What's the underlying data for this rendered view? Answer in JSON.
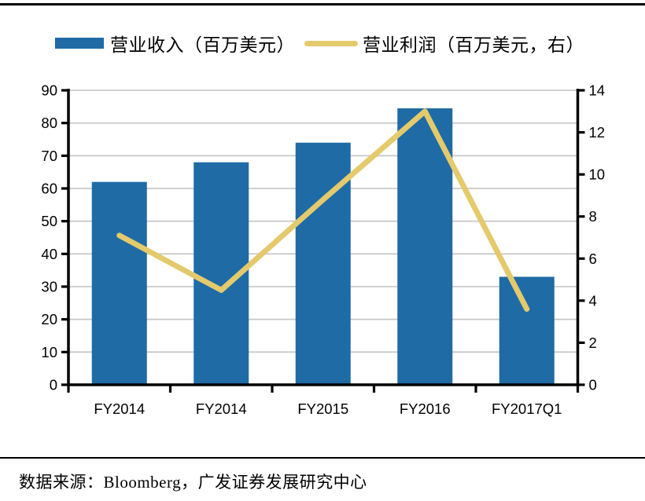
{
  "page": {
    "background": "#FFFFFF"
  },
  "chart_data": {
    "type": "bar+line",
    "title": "",
    "categories": [
      "FY2014",
      "FY2014",
      "FY2015",
      "FY2016",
      "FY2017Q1"
    ],
    "series": [
      {
        "name": "营业收入（百万美元）",
        "type": "bar",
        "axis": "left",
        "color": "#1F6BA5",
        "values": [
          62,
          68,
          74,
          84.5,
          33
        ]
      },
      {
        "name": "营业利润（百万美元，右）",
        "type": "line",
        "axis": "right",
        "color": "#E4CA6C",
        "values": [
          7.1,
          4.5,
          8.8,
          13.0,
          3.6
        ]
      }
    ],
    "left_axis": {
      "min": 0,
      "max": 90,
      "step": 10,
      "tick_labels": [
        "0",
        "10",
        "20",
        "30",
        "40",
        "50",
        "60",
        "70",
        "80",
        "90"
      ]
    },
    "right_axis": {
      "min": 0,
      "max": 14,
      "step": 2,
      "tick_labels": [
        "0",
        "2",
        "4",
        "6",
        "8",
        "10",
        "12",
        "14"
      ]
    },
    "grid": true,
    "legend_position": "top",
    "axis_color": "#000000",
    "gridline_color": "#C9C9C9",
    "label_color": "#000000"
  },
  "footer": {
    "source_text": "数据来源：Bloomberg，广发证券发展研究中心"
  }
}
